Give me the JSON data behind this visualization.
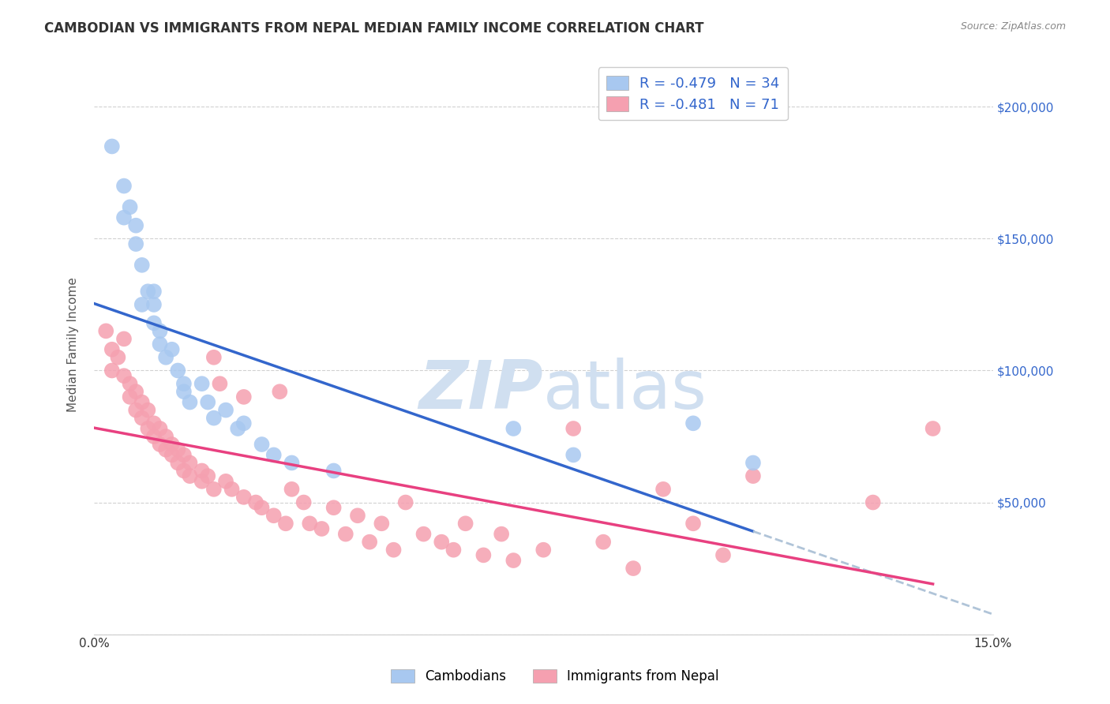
{
  "title": "CAMBODIAN VS IMMIGRANTS FROM NEPAL MEDIAN FAMILY INCOME CORRELATION CHART",
  "source": "Source: ZipAtlas.com",
  "ylabel": "Median Family Income",
  "x_min": 0.0,
  "x_max": 0.15,
  "y_min": 0,
  "y_max": 220000,
  "y_ticks": [
    0,
    50000,
    100000,
    150000,
    200000
  ],
  "y_tick_labels": [
    "",
    "$50,000",
    "$100,000",
    "$150,000",
    "$200,000"
  ],
  "legend1_r": "R = -0.479",
  "legend1_n": "N = 34",
  "legend2_r": "R = -0.481",
  "legend2_n": "N = 71",
  "cambodian_color": "#a8c8f0",
  "nepal_color": "#f5a0b0",
  "line_blue": "#3366cc",
  "line_pink": "#e84080",
  "line_dashed_color": "#b0c4d8",
  "watermark_zip": "ZIP",
  "watermark_atlas": "atlas",
  "watermark_color": "#d0dff0",
  "cambodians_label": "Cambodians",
  "nepal_label": "Immigrants from Nepal",
  "cambodian_x": [
    0.003,
    0.005,
    0.005,
    0.006,
    0.007,
    0.007,
    0.008,
    0.008,
    0.009,
    0.01,
    0.01,
    0.01,
    0.011,
    0.011,
    0.012,
    0.013,
    0.014,
    0.015,
    0.015,
    0.016,
    0.018,
    0.019,
    0.02,
    0.022,
    0.024,
    0.025,
    0.028,
    0.03,
    0.033,
    0.04,
    0.07,
    0.08,
    0.1,
    0.11
  ],
  "cambodian_y": [
    185000,
    170000,
    158000,
    162000,
    155000,
    148000,
    140000,
    125000,
    130000,
    130000,
    125000,
    118000,
    115000,
    110000,
    105000,
    108000,
    100000,
    92000,
    95000,
    88000,
    95000,
    88000,
    82000,
    85000,
    78000,
    80000,
    72000,
    68000,
    65000,
    62000,
    78000,
    68000,
    80000,
    65000
  ],
  "nepal_x": [
    0.002,
    0.003,
    0.003,
    0.004,
    0.005,
    0.005,
    0.006,
    0.006,
    0.007,
    0.007,
    0.008,
    0.008,
    0.009,
    0.009,
    0.01,
    0.01,
    0.011,
    0.011,
    0.012,
    0.012,
    0.013,
    0.013,
    0.014,
    0.014,
    0.015,
    0.015,
    0.016,
    0.016,
    0.018,
    0.018,
    0.019,
    0.02,
    0.02,
    0.021,
    0.022,
    0.023,
    0.025,
    0.025,
    0.027,
    0.028,
    0.03,
    0.031,
    0.032,
    0.033,
    0.035,
    0.036,
    0.038,
    0.04,
    0.042,
    0.044,
    0.046,
    0.048,
    0.05,
    0.052,
    0.055,
    0.058,
    0.06,
    0.062,
    0.065,
    0.068,
    0.07,
    0.075,
    0.08,
    0.085,
    0.09,
    0.095,
    0.1,
    0.105,
    0.11,
    0.13,
    0.14
  ],
  "nepal_y": [
    115000,
    108000,
    100000,
    105000,
    112000,
    98000,
    95000,
    90000,
    92000,
    85000,
    88000,
    82000,
    85000,
    78000,
    80000,
    75000,
    78000,
    72000,
    75000,
    70000,
    72000,
    68000,
    70000,
    65000,
    68000,
    62000,
    65000,
    60000,
    62000,
    58000,
    60000,
    55000,
    105000,
    95000,
    58000,
    55000,
    52000,
    90000,
    50000,
    48000,
    45000,
    92000,
    42000,
    55000,
    50000,
    42000,
    40000,
    48000,
    38000,
    45000,
    35000,
    42000,
    32000,
    50000,
    38000,
    35000,
    32000,
    42000,
    30000,
    38000,
    28000,
    32000,
    78000,
    35000,
    25000,
    55000,
    42000,
    30000,
    60000,
    50000,
    78000
  ]
}
